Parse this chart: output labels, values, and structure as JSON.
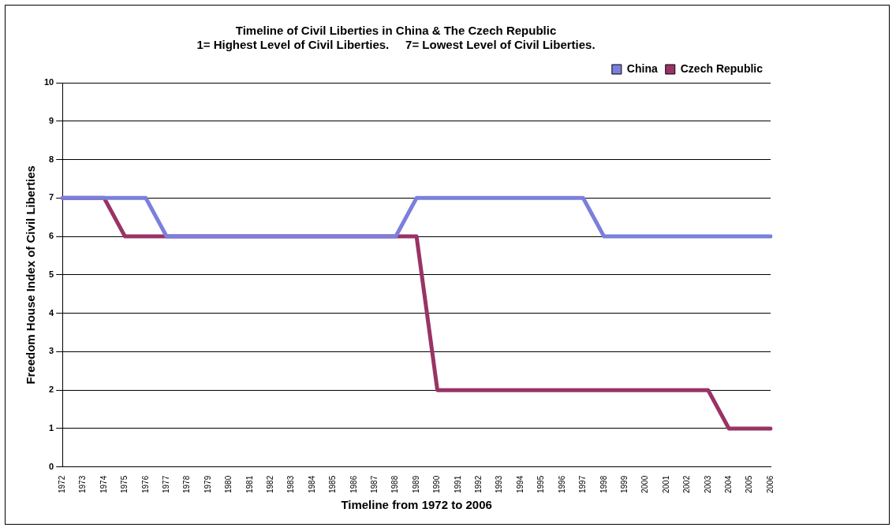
{
  "chart_data": {
    "type": "line",
    "title": "Timeline of Civil Liberties in China & The Czech Republic",
    "subtitle": "1= Highest Level of Civil Liberties.     7= Lowest Level of Civil Liberties.",
    "xlabel": "Timeline from 1972 to 2006",
    "ylabel": "Freedom House Index of Civil Liberties",
    "categories": [
      "1972",
      "1973",
      "1974",
      "1975",
      "1976",
      "1977",
      "1978",
      "1979",
      "1980",
      "1981",
      "1982",
      "1983",
      "1984",
      "1985",
      "1986",
      "1987",
      "1988",
      "1989",
      "1990",
      "1991",
      "1992",
      "1993",
      "1994",
      "1995",
      "1996",
      "1997",
      "1998",
      "1999",
      "2000",
      "2001",
      "2002",
      "2003",
      "2004",
      "2005",
      "2006"
    ],
    "series": [
      {
        "name": "China",
        "color": "#7b7fdc",
        "values": [
          7,
          7,
          7,
          7,
          7,
          6,
          6,
          6,
          6,
          6,
          6,
          6,
          6,
          6,
          6,
          6,
          6,
          7,
          7,
          7,
          7,
          7,
          7,
          7,
          7,
          7,
          6,
          6,
          6,
          6,
          6,
          6,
          6,
          6,
          6
        ]
      },
      {
        "name": "Czech Republic",
        "color": "#993366",
        "values": [
          7,
          7,
          7,
          6,
          6,
          6,
          6,
          6,
          6,
          6,
          6,
          6,
          6,
          6,
          6,
          6,
          6,
          6,
          2,
          2,
          2,
          2,
          2,
          2,
          2,
          2,
          2,
          2,
          2,
          2,
          2,
          2,
          1,
          1,
          1
        ]
      }
    ],
    "ylim": [
      0,
      10
    ],
    "yticks": [
      0,
      1,
      2,
      3,
      4,
      5,
      6,
      7,
      8,
      9,
      10
    ],
    "grid": "y",
    "legend": "top right",
    "marker": "none",
    "line_style": "solid"
  }
}
